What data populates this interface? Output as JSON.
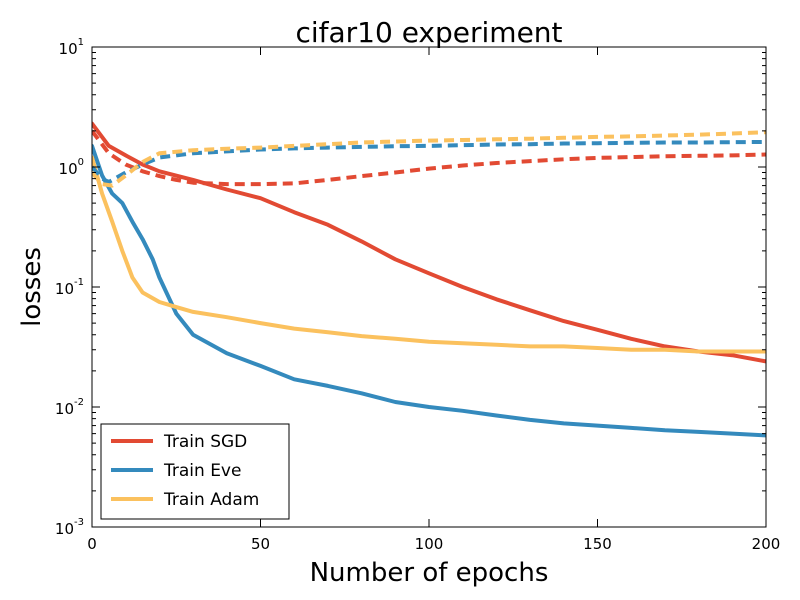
{
  "chart_data": {
    "type": "line",
    "title": "cifar10 experiment",
    "xlabel": "Number of epochs",
    "ylabel": "losses",
    "xlim": [
      0,
      200
    ],
    "ylim": [
      0.001,
      10
    ],
    "yscale": "log",
    "grid": false,
    "legend_position": "bottom-left",
    "x_ticks": [
      {
        "value": 0,
        "label": "0"
      },
      {
        "value": 50,
        "label": "50"
      },
      {
        "value": 100,
        "label": "100"
      },
      {
        "value": 150,
        "label": "150"
      },
      {
        "value": 200,
        "label": "200"
      }
    ],
    "y_ticks": [
      {
        "value": 10,
        "base": "10",
        "exp": "1"
      },
      {
        "value": 1,
        "base": "10",
        "exp": "0"
      },
      {
        "value": 0.1,
        "base": "10",
        "exp": "-1"
      },
      {
        "value": 0.01,
        "base": "10",
        "exp": "-2"
      },
      {
        "value": 0.001,
        "base": "10",
        "exp": "-3"
      }
    ],
    "series": [
      {
        "name": "Train SGD",
        "color": "#e24a33",
        "style": "solid",
        "x": [
          0,
          5,
          10,
          15,
          20,
          30,
          40,
          50,
          60,
          70,
          80,
          90,
          100,
          110,
          120,
          130,
          140,
          150,
          160,
          170,
          180,
          190,
          200
        ],
        "y": [
          2.3,
          1.5,
          1.25,
          1.05,
          0.92,
          0.78,
          0.65,
          0.55,
          0.42,
          0.33,
          0.24,
          0.17,
          0.13,
          0.1,
          0.079,
          0.064,
          0.052,
          0.044,
          0.037,
          0.032,
          0.029,
          0.027,
          0.024
        ]
      },
      {
        "name": "Train Eve",
        "color": "#348abd",
        "style": "solid",
        "x": [
          0,
          3,
          6,
          9,
          12,
          15,
          18,
          20,
          25,
          30,
          40,
          50,
          60,
          70,
          80,
          90,
          100,
          110,
          120,
          130,
          140,
          150,
          160,
          170,
          180,
          190,
          200
        ],
        "y": [
          1.5,
          0.85,
          0.6,
          0.5,
          0.35,
          0.25,
          0.17,
          0.12,
          0.06,
          0.04,
          0.028,
          0.022,
          0.017,
          0.015,
          0.013,
          0.011,
          0.01,
          0.0093,
          0.0085,
          0.0078,
          0.0073,
          0.007,
          0.0067,
          0.0064,
          0.0062,
          0.006,
          0.0058
        ]
      },
      {
        "name": "Train Adam",
        "color": "#fbc15e",
        "style": "solid",
        "x": [
          0,
          3,
          6,
          9,
          12,
          15,
          20,
          25,
          30,
          40,
          50,
          60,
          70,
          80,
          90,
          100,
          110,
          120,
          130,
          140,
          150,
          160,
          170,
          180,
          190,
          200
        ],
        "y": [
          1.2,
          0.6,
          0.35,
          0.2,
          0.12,
          0.09,
          0.075,
          0.068,
          0.062,
          0.056,
          0.05,
          0.045,
          0.042,
          0.039,
          0.037,
          0.035,
          0.034,
          0.033,
          0.032,
          0.032,
          0.031,
          0.03,
          0.03,
          0.029,
          0.029,
          0.029
        ]
      },
      {
        "name": "",
        "color": "#e24a33",
        "style": "dashed",
        "x": [
          0,
          5,
          10,
          15,
          20,
          25,
          30,
          40,
          50,
          60,
          70,
          80,
          90,
          100,
          110,
          120,
          130,
          140,
          150,
          160,
          170,
          180,
          190,
          200
        ],
        "y": [
          2.0,
          1.3,
          1.05,
          0.92,
          0.84,
          0.78,
          0.74,
          0.72,
          0.72,
          0.73,
          0.78,
          0.84,
          0.9,
          0.97,
          1.03,
          1.08,
          1.12,
          1.16,
          1.19,
          1.21,
          1.23,
          1.24,
          1.25,
          1.27
        ]
      },
      {
        "name": "",
        "color": "#348abd",
        "style": "dashed",
        "x": [
          0,
          3,
          5,
          10,
          15,
          20,
          30,
          40,
          50,
          60,
          70,
          80,
          90,
          100,
          110,
          120,
          130,
          140,
          150,
          160,
          170,
          180,
          190,
          200
        ],
        "y": [
          1.0,
          0.8,
          0.75,
          0.9,
          1.05,
          1.2,
          1.3,
          1.35,
          1.4,
          1.43,
          1.45,
          1.47,
          1.49,
          1.5,
          1.52,
          1.54,
          1.55,
          1.57,
          1.58,
          1.59,
          1.6,
          1.6,
          1.61,
          1.62
        ]
      },
      {
        "name": "",
        "color": "#fbc15e",
        "style": "dashed",
        "x": [
          0,
          3,
          6,
          10,
          15,
          20,
          30,
          40,
          50,
          60,
          70,
          80,
          90,
          100,
          110,
          120,
          130,
          140,
          150,
          160,
          170,
          180,
          190,
          200
        ],
        "y": [
          0.9,
          0.72,
          0.7,
          0.85,
          1.1,
          1.3,
          1.38,
          1.42,
          1.45,
          1.5,
          1.55,
          1.6,
          1.63,
          1.66,
          1.68,
          1.7,
          1.72,
          1.75,
          1.78,
          1.8,
          1.83,
          1.86,
          1.9,
          1.95
        ]
      }
    ]
  }
}
